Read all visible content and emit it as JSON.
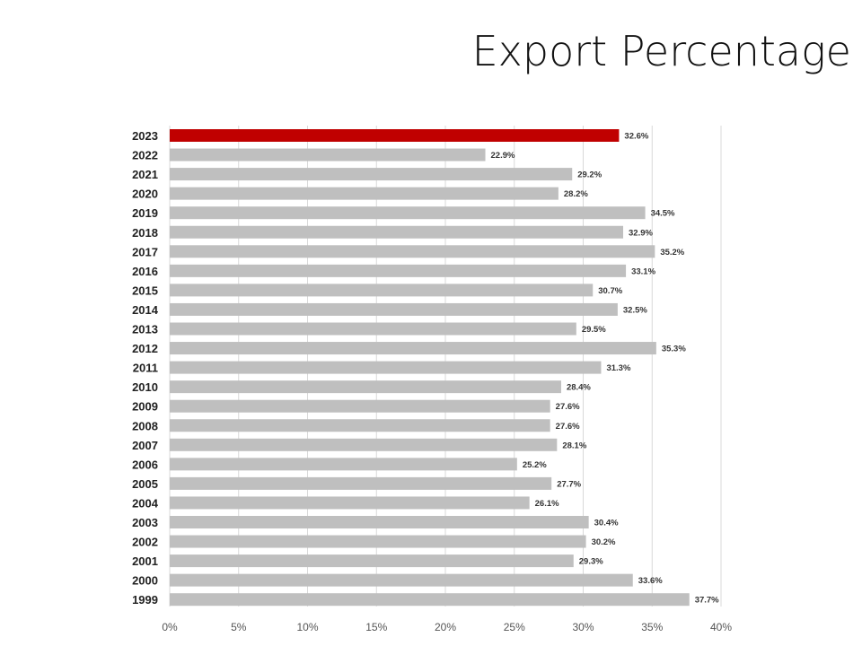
{
  "title": "Export Percentage",
  "colors": {
    "highlight": "#c00000",
    "bar": "#bfbfbf",
    "grid": "#d9d9d9"
  },
  "chart_data": {
    "type": "bar",
    "orientation": "horizontal",
    "categories": [
      "2023",
      "2022",
      "2021",
      "2020",
      "2019",
      "2018",
      "2017",
      "2016",
      "2015",
      "2014",
      "2013",
      "2012",
      "2011",
      "2010",
      "2009",
      "2008",
      "2007",
      "2006",
      "2005",
      "2004",
      "2003",
      "2002",
      "2001",
      "2000",
      "1999"
    ],
    "values": [
      32.6,
      22.9,
      29.2,
      28.2,
      34.5,
      32.9,
      35.2,
      33.1,
      30.7,
      32.5,
      29.5,
      35.3,
      31.3,
      28.4,
      27.6,
      27.6,
      28.1,
      25.2,
      27.7,
      26.1,
      30.4,
      30.2,
      29.3,
      33.6,
      37.7
    ],
    "value_labels": [
      "32.6%",
      "22.9%",
      "29.2%",
      "28.2%",
      "34.5%",
      "32.9%",
      "35.2%",
      "33.1%",
      "30.7%",
      "32.5%",
      "29.5%",
      "35.3%",
      "31.3%",
      "28.4%",
      "27.6%",
      "27.6%",
      "28.1%",
      "25.2%",
      "27.7%",
      "26.1%",
      "30.4%",
      "30.2%",
      "29.3%",
      "33.6%",
      "37.7%"
    ],
    "highlight_category": "2023",
    "xlim": [
      0,
      40
    ],
    "x_ticks": [
      0,
      5,
      10,
      15,
      20,
      25,
      30,
      35,
      40
    ],
    "x_tick_labels": [
      "0%",
      "5%",
      "10%",
      "15%",
      "20%",
      "25%",
      "30%",
      "35%",
      "40%"
    ],
    "grid": true,
    "legend": "none"
  }
}
